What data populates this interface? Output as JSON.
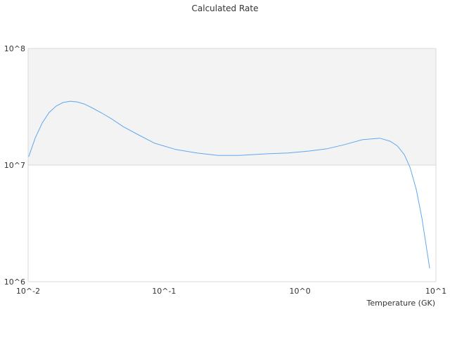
{
  "chart_data": {
    "type": "line",
    "title": "Calculated Rate",
    "xlabel": "Temperature (GK)",
    "ylabel": "",
    "x_scale": "log",
    "y_scale": "log",
    "xlim": [
      0.01,
      10
    ],
    "ylim": [
      1000000,
      100000000
    ],
    "x_ticks": [
      {
        "value": 0.01,
        "label": "10^-2"
      },
      {
        "value": 0.1,
        "label": "10^-1"
      },
      {
        "value": 1,
        "label": "10^0"
      },
      {
        "value": 10,
        "label": "10^1"
      }
    ],
    "y_ticks": [
      {
        "value": 1000000,
        "label": "10^6"
      },
      {
        "value": 10000000,
        "label": "10^7"
      },
      {
        "value": 100000000,
        "label": "10^8"
      }
    ],
    "grid": false,
    "legend": "none",
    "colors": {
      "line": "#5ea8f0",
      "band": "#f3f3f3",
      "axis": "#d9d9d9"
    },
    "series": [
      {
        "x": [
          0.0101,
          0.0113,
          0.0127,
          0.0143,
          0.0161,
          0.0181,
          0.0204,
          0.023,
          0.0259,
          0.0292,
          0.0349,
          0.0418,
          0.0499,
          0.0634,
          0.0853,
          0.122,
          0.174,
          0.249,
          0.356,
          0.574,
          0.82,
          1.17,
          1.58,
          2.13,
          2.87,
          3.86,
          4.61,
          5.2,
          5.85,
          6.44,
          7.17,
          7.88,
          8.99
        ],
        "y": [
          11800000,
          17200000,
          23000000,
          28300000,
          32100000,
          34400000,
          35300000,
          34800000,
          33400000,
          31200000,
          27900000,
          24600000,
          21400000,
          18400000,
          15400000,
          13600000,
          12700000,
          12100000,
          12100000,
          12500000,
          12700000,
          13200000,
          13800000,
          15000000,
          16500000,
          17000000,
          16000000,
          14600000,
          12300000,
          9590000,
          6150000,
          3530000,
          1300000
        ]
      }
    ]
  }
}
